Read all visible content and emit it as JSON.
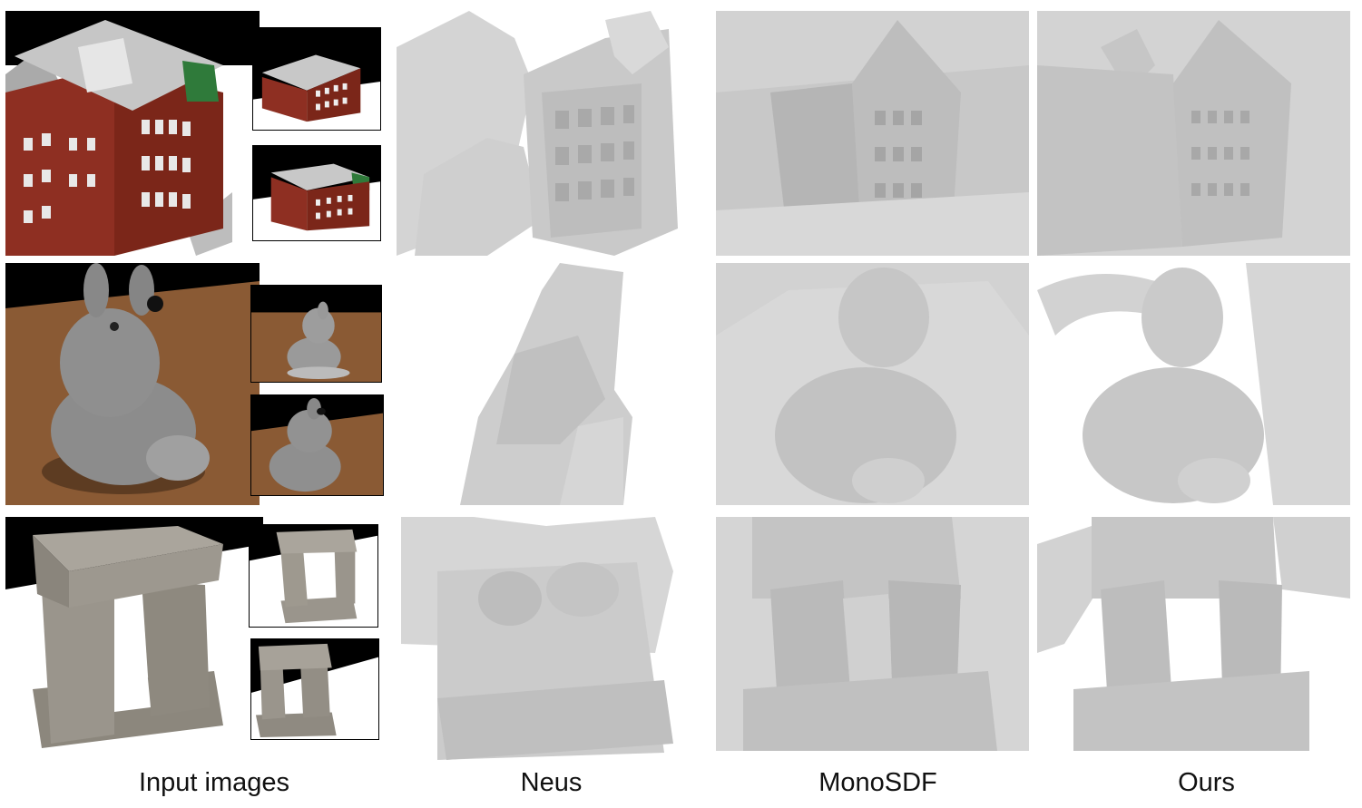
{
  "columns": [
    {
      "key": "input",
      "label": "Input images"
    },
    {
      "key": "neus",
      "label": "Neus"
    },
    {
      "key": "monosdf",
      "label": "MonoSDF"
    },
    {
      "key": "ours",
      "label": "Ours"
    }
  ],
  "rows": [
    {
      "subject": "building-model"
    },
    {
      "subject": "rabbit-statue"
    },
    {
      "subject": "stone-arch"
    }
  ],
  "colors": {
    "brick": "#8e2f22",
    "roof": "#c9c9c9",
    "floor_brown": "#8a5a34",
    "mesh_gray": "#cfcfcf",
    "stone": "#9a958c"
  }
}
